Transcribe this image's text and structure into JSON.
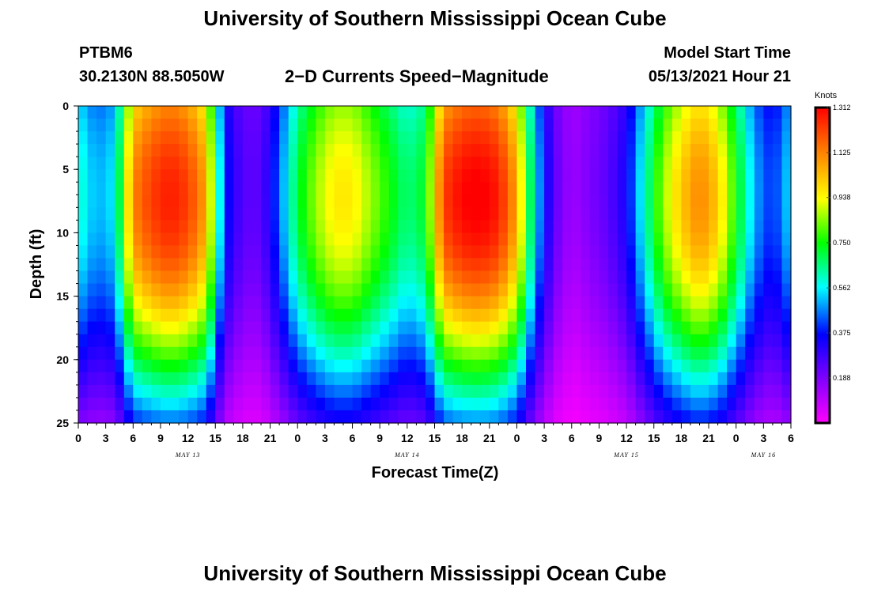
{
  "page": {
    "title_top": "University of Southern Mississippi Ocean Cube",
    "title_bottom": "University of Southern Mississippi Ocean Cube",
    "station_id": "PTBM6",
    "station_coords": "30.2130N  88.5050W",
    "plot_title": "2−D Currents Speed−Magnitude",
    "model_start_label": "Model Start Time",
    "model_start_value": "05/13/2021 Hour 21"
  },
  "chart_data": {
    "type": "heatmap",
    "title": "2−D Currents Speed−Magnitude",
    "xlabel": "Forecast Time(Z)",
    "ylabel": "Depth (ft)",
    "x_tick_labels": [
      "0",
      "3",
      "6",
      "9",
      "12",
      "15",
      "18",
      "21",
      "0",
      "3",
      "6",
      "9",
      "12",
      "15",
      "18",
      "21",
      "0",
      "3",
      "6",
      "9",
      "12",
      "15",
      "18",
      "21",
      "0",
      "3",
      "6"
    ],
    "x_range_hours": [
      0,
      78
    ],
    "date_labels": [
      {
        "text": "MAY 13",
        "hour": 12
      },
      {
        "text": "MAY 14",
        "hour": 36
      },
      {
        "text": "MAY 15",
        "hour": 60
      },
      {
        "text": "MAY 16",
        "hour": 75
      }
    ],
    "y_ticks": [
      "0",
      "5",
      "10",
      "15",
      "20",
      "25"
    ],
    "y_range": [
      0,
      25
    ],
    "y_inverted": true,
    "colorbar": {
      "unit": "Knots",
      "range": [
        0.0,
        1.312
      ],
      "ticks": [
        "1.312",
        "1.125",
        "0.938",
        "0.750",
        "0.562",
        "0.375",
        "0.188"
      ],
      "colors": [
        "#ff00ff",
        "#8000ff",
        "#0000ff",
        "#00ffff",
        "#00ff00",
        "#ffff00",
        "#ff8000",
        "#ff0000"
      ]
    },
    "surface_speed_series_knots": {
      "hours": [
        0,
        2,
        4,
        6,
        8,
        10,
        12,
        14,
        16,
        18,
        20,
        22,
        24,
        26,
        28,
        30,
        32,
        34,
        36,
        38,
        40,
        42,
        44,
        46,
        48,
        50,
        52,
        54,
        56,
        58,
        60,
        62,
        64,
        66,
        68,
        70,
        72,
        74,
        76,
        78
      ],
      "values": [
        0.6,
        0.5,
        0.55,
        1.1,
        1.2,
        1.25,
        1.2,
        1.05,
        0.4,
        0.25,
        0.25,
        0.45,
        0.7,
        0.85,
        0.95,
        0.95,
        0.85,
        0.75,
        0.65,
        0.72,
        1.2,
        1.28,
        1.3,
        1.25,
        1.05,
        0.55,
        0.25,
        0.15,
        0.2,
        0.25,
        0.35,
        0.6,
        0.85,
        1.0,
        1.1,
        1.0,
        0.75,
        0.5,
        0.4,
        0.55
      ]
    }
  }
}
